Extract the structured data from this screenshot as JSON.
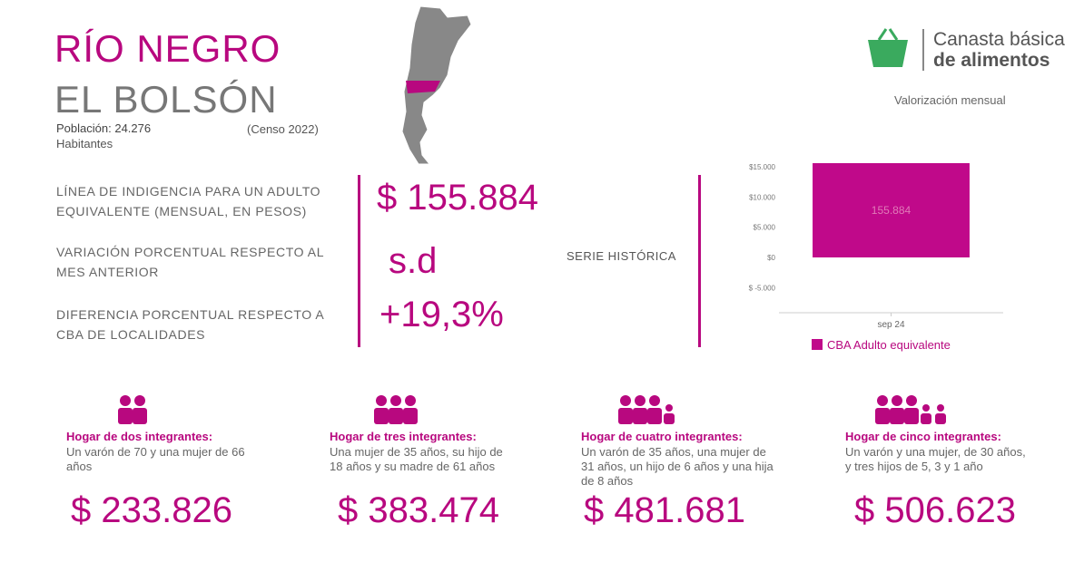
{
  "header": {
    "province": "RÍO NEGRO",
    "city": "EL BOLSÓN",
    "population_label": "Población:",
    "population": "24.276",
    "population_unit": "Habitantes",
    "census": "(Censo 2022)"
  },
  "brand": {
    "line1": "Canasta básica",
    "line2": "de alimentos",
    "subtitle": "Valorización mensual"
  },
  "indicators": [
    {
      "label": "LÍNEA DE INDIGENCIA PARA UN ADULTO EQUIVALENTE (MENSUAL, EN PESOS)",
      "value": "$ 155.884"
    },
    {
      "label": "VARIACIÓN PORCENTUAL RESPECTO AL MES ANTERIOR",
      "value": "s.d"
    },
    {
      "label": "DIFERENCIA PORCENTUAL RESPECTO A CBA DE LOCALIDADES",
      "value": "+19,3%"
    }
  ],
  "series_label": "SERIE HISTÓRICA",
  "chart_data": {
    "type": "bar",
    "categories": [
      "sep 24"
    ],
    "series": [
      {
        "name": "CBA Adulto equivalente",
        "color": "#c0098a",
        "values": [
          155884
        ],
        "value_labels": [
          "155.884"
        ]
      }
    ],
    "ylim": [
      -9150,
      15600
    ],
    "yticks": [
      {
        "value": -5000,
        "label": "$ -5.000"
      },
      {
        "value": 0,
        "label": "$0"
      },
      {
        "value": 5000,
        "label": "$5.000"
      },
      {
        "value": 10000,
        "label": "$10.000"
      },
      {
        "value": 15000,
        "label": "$15.000"
      }
    ],
    "grid": false
  },
  "households": [
    {
      "title": "Hogar de dos integrantes:",
      "description": "Un varón de 70 y una mujer de 66 años",
      "value": "$ 233.826"
    },
    {
      "title": "Hogar de tres integrantes:",
      "description": "Una mujer de 35 años, su hijo de 18 años y su madre de 61 años",
      "value": "$ 383.474"
    },
    {
      "title": "Hogar de cuatro integrantes:",
      "description": "Un varón de 35 años, una mujer de 31 años, un hijo de 6 años y una hija de 8 años",
      "value": "$ 481.681"
    },
    {
      "title": "Hogar de cinco integrantes:",
      "description": "Un varón y una mujer, de 30 años, y tres hijos de 5, 3 y 1 año",
      "value": "$ 506.623"
    }
  ]
}
